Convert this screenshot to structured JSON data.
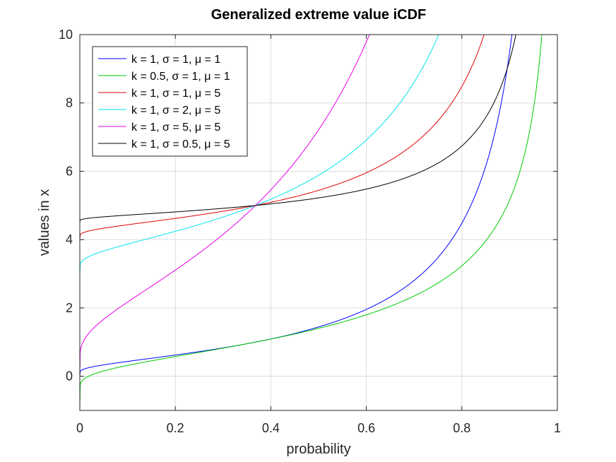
{
  "chart_data": {
    "type": "line",
    "title": "Generalized extreme value iCDF",
    "xlabel": "probability",
    "ylabel": "values in x",
    "xlim": [
      0,
      1
    ],
    "ylim": [
      -1,
      10
    ],
    "xticks": [
      "0",
      "0.2",
      "0.4",
      "0.6",
      "0.8",
      "1"
    ],
    "yticks": [
      "0",
      "2",
      "4",
      "6",
      "8",
      "10"
    ],
    "grid": true,
    "legend_position": "top-left",
    "series": [
      {
        "name": "k = 1, σ = 1, μ = 1",
        "color": "#0000ff",
        "k": 1,
        "sigma": 1,
        "mu": 1
      },
      {
        "name": "k = 0.5, σ = 1, μ = 1",
        "color": "#00cc00",
        "k": 0.5,
        "sigma": 1,
        "mu": 1
      },
      {
        "name": "k = 1, σ = 1, μ = 5",
        "color": "#e00000",
        "k": 1,
        "sigma": 1,
        "mu": 5
      },
      {
        "name": "k = 1, σ = 2, μ = 5",
        "color": "#00e5ee",
        "k": 1,
        "sigma": 2,
        "mu": 5
      },
      {
        "name": "k = 1, σ = 5, μ = 5",
        "color": "#e800e8",
        "k": 1,
        "sigma": 5,
        "mu": 5
      },
      {
        "name": "k = 1, σ = 0.5, μ = 5",
        "color": "#000000",
        "k": 1,
        "sigma": 0.5,
        "mu": 5
      }
    ]
  }
}
